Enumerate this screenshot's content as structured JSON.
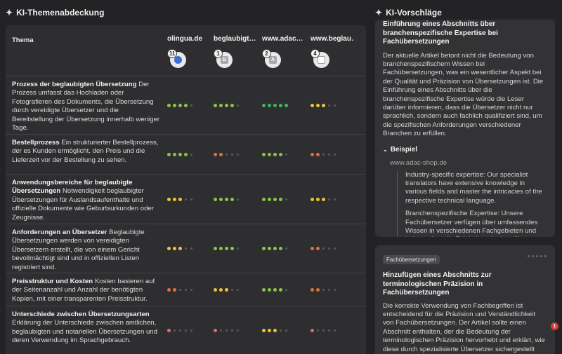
{
  "left_panel": {
    "title": "KI-Themenabdeckung",
    "column_header": "Thema",
    "sites": [
      {
        "name": "olingua.de",
        "rank": "11",
        "icon": "globe-favicon"
      },
      {
        "name": "beglaubigt…",
        "rank": "1",
        "icon": "b-favicon"
      },
      {
        "name": "www.adac…",
        "rank": "2",
        "icon": "a-favicon"
      },
      {
        "name": "www.beglau…",
        "rank": "4",
        "icon": "broken-image-favicon"
      }
    ],
    "rows": [
      {
        "title": "Prozess der beglaubigten Übersetzung",
        "desc": "Der Prozess umfasst das Hochladen oder Fotografieren des Dokuments, die Übersetzung durch vereidigte Übersetzer und die Bereitstellung der Übersetzung innerhalb weniger Tage.",
        "scores": [
          4,
          4,
          5,
          3
        ]
      },
      {
        "title": "Bestellprozess",
        "desc": "Ein strukturierter Bestellprozess, der es Kunden ermöglicht, den Preis und die Lieferzeit vor der Bestellung zu sehen.",
        "scores": [
          4,
          2,
          4,
          2
        ]
      },
      {
        "title": "Anwendungsbereiche für beglaubigte Übersetzungen",
        "desc": "Notwendigkeit beglaubigter Übersetzungen für Auslandsaufenthalte und offizielle Dokumente wie Geburtsurkunden oder Zeugnisse.",
        "scores": [
          3,
          4,
          4,
          3
        ]
      },
      {
        "title": "Anforderungen an Übersetzer",
        "desc": "Beglaubigte Übersetzungen werden von vereidigten Übersetzern erstellt, die von einem Gericht bevollmächtigt sind und in offiziellen Listen registriert sind.",
        "scores": [
          3,
          4,
          4,
          2
        ]
      },
      {
        "title": "Preisstruktur und Kosten",
        "desc": "Kosten basieren auf der Seitenanzahl und Anzahl der benötigten Kopien, mit einer transparenten Preisstruktur.",
        "scores": [
          2,
          3,
          4,
          2
        ]
      },
      {
        "title": "Unterschiede zwischen Übersetzungsarten",
        "desc": "Erklärung der Unterschiede zwischen amtlichen, beglaubigten und notariellen Übersetzungen und deren Verwendung im Sprachgebrauch.",
        "scores": [
          1,
          1,
          3,
          1
        ]
      }
    ]
  },
  "score_colors": {
    "1": "#e26b6b",
    "2": "#e0703a",
    "3": "#e8c43a",
    "4": "#8fc24a",
    "5": "#3fb56a",
    "off": "#5a5a5c"
  },
  "right_panel": {
    "title": "KI-Vorschläge",
    "card1": {
      "title": "Einführung eines Abschnitts über branchenspezifische Expertise bei Fachübersetzungen",
      "body": "Der aktuelle Artikel betont nicht die Bedeutung von branchenspezifischem Wissen bei Fachübersetzungen, was ein wesentlicher Aspekt bei der Qualität und Präzision von Übersetzungen ist. Die Einführung eines Abschnitts über die branchenspezifische Expertise würde die Leser darüber informieren, dass die Übersetzer nicht nur sprachlich, sondern auch fachlich qualifiziert sind, um die spezifischen Anforderungen verschiedener Branchen zu erfüllen.",
      "examples_label": "Beispiel",
      "example_site": "www.adac-shop.de",
      "quote_en": "Industry-specific expertise: Our specialist translators have extensive knowledge in various fields and master the intricacies of the respective technical language.",
      "quote_de": "Branchenspezifische Expertise: Unsere Fachübersetzer verfügen über umfassendes Wissen in verschiedenen Fachgebieten und beherrschen die Feinheiten der jeweiligen Fachsprache."
    },
    "card2": {
      "tag": "Fachübersetzungen",
      "title": "Hinzufügen eines Abschnitts zur terminologischen Präzision in Fachübersetzungen",
      "body": "Die korrekte Verwendung von Fachbegriffen ist entscheidend für die Präzision und Verständlichkeit von Fachübersetzungen. Der Artikel sollte einen Abschnitt enthalten, der die Bedeutung der terminologischen Präzision hervorhebt und erklärt, wie diese durch spezialisierte Übersetzer sichergestellt wird."
    },
    "notification_count": "1"
  }
}
